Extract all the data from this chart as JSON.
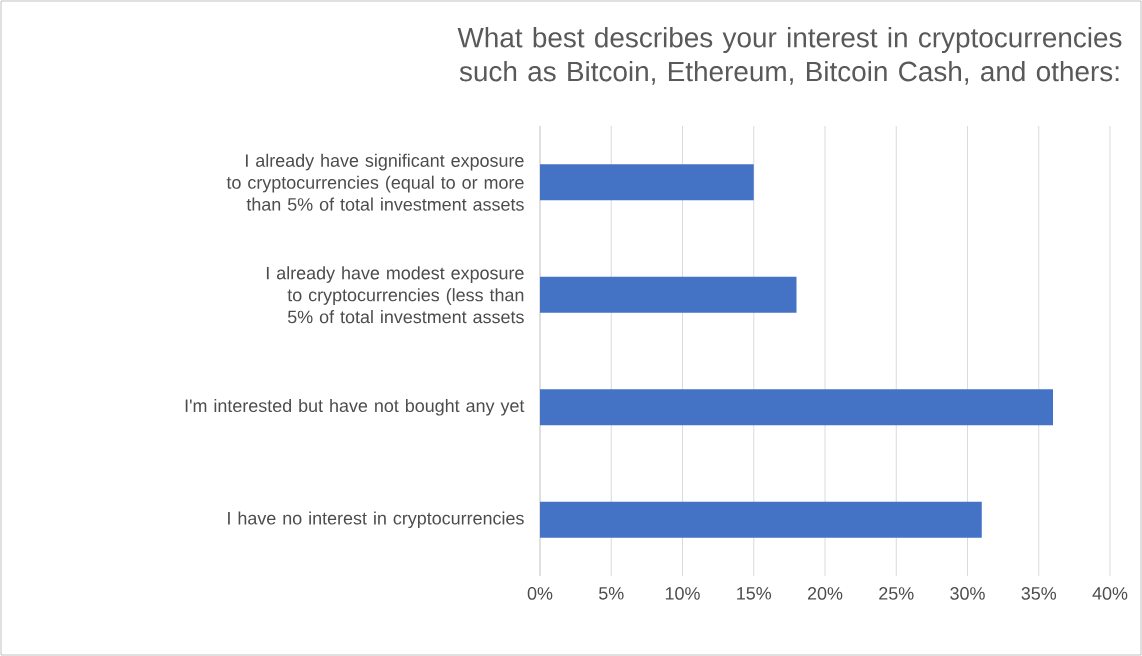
{
  "chart_data": {
    "type": "bar",
    "orientation": "horizontal",
    "title": "What best describes your interest in cryptocurrencies such as Bitcoin, Ethereum, Bitcoin Cash, and others:",
    "categories": [
      "I already have significant exposure to cryptocurrencies (equal to or more than 5% of total investment assets",
      "I already have modest exposure to cryptocurrencies (less than 5% of total investment assets",
      "I'm interested but have not bought any yet",
      "I have no interest in cryptocurrencies"
    ],
    "values": [
      15,
      18,
      36,
      31
    ],
    "color": "#4472c4",
    "xlim": [
      0,
      40
    ],
    "xticks": [
      {
        "value": 0,
        "label": "0%"
      },
      {
        "value": 5,
        "label": "5%"
      },
      {
        "value": 10,
        "label": "10%"
      },
      {
        "value": 15,
        "label": "15%"
      },
      {
        "value": 20,
        "label": "20%"
      },
      {
        "value": 25,
        "label": "25%"
      },
      {
        "value": 30,
        "label": "30%"
      },
      {
        "value": 35,
        "label": "35%"
      },
      {
        "value": 40,
        "label": "40%"
      }
    ],
    "grid": "x"
  }
}
